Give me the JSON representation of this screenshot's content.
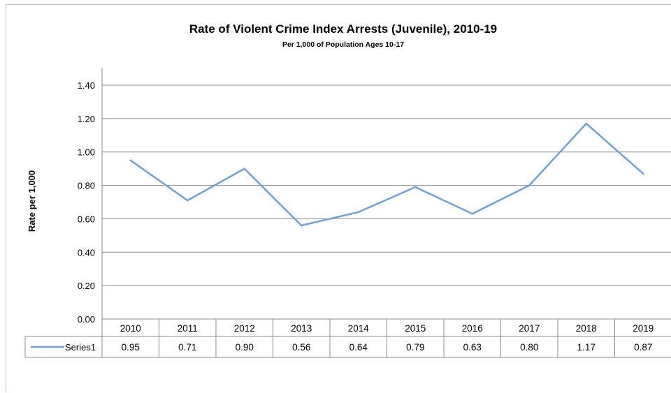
{
  "chart_data": {
    "type": "line",
    "title": "Rate of Violent Crime Index Arrests (Juvenile), 2010-19",
    "subtitle": "Per 1,000 of Population Ages 10-17",
    "xlabel": "",
    "ylabel": "Rate per 1,000",
    "ylim": [
      0,
      1.4
    ],
    "yticks": [
      "0.00",
      "0.20",
      "0.40",
      "0.60",
      "0.80",
      "1.00",
      "1.20",
      "1.40"
    ],
    "ytick_values": [
      0,
      0.2,
      0.4,
      0.6,
      0.8,
      1.0,
      1.2,
      1.4
    ],
    "grid": true,
    "legend": "data-table",
    "categories": [
      "2010",
      "2011",
      "2012",
      "2013",
      "2014",
      "2015",
      "2016",
      "2017",
      "2018",
      "2019"
    ],
    "series": [
      {
        "name": "Series1",
        "color": "#6fa0d6",
        "values": [
          0.95,
          0.71,
          0.9,
          0.56,
          0.64,
          0.79,
          0.63,
          0.8,
          1.17,
          0.87
        ],
        "labels": [
          "0.95",
          "0.71",
          "0.90",
          "0.56",
          "0.64",
          "0.79",
          "0.63",
          "0.80",
          "1.17",
          "0.87"
        ]
      }
    ]
  }
}
